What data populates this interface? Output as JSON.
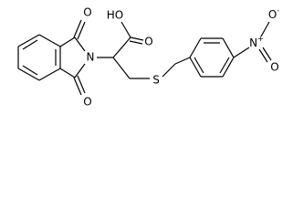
{
  "atoms": [
    {
      "label": "O"
    },
    {
      "label": "O"
    },
    {
      "label": "N"
    },
    {
      "label": "HO"
    },
    {
      "label": "O"
    },
    {
      "label": "S"
    },
    {
      "label": "N",
      "charge": "+"
    },
    {
      "label": "O",
      "charge": "-"
    },
    {
      "label": "O"
    }
  ]
}
